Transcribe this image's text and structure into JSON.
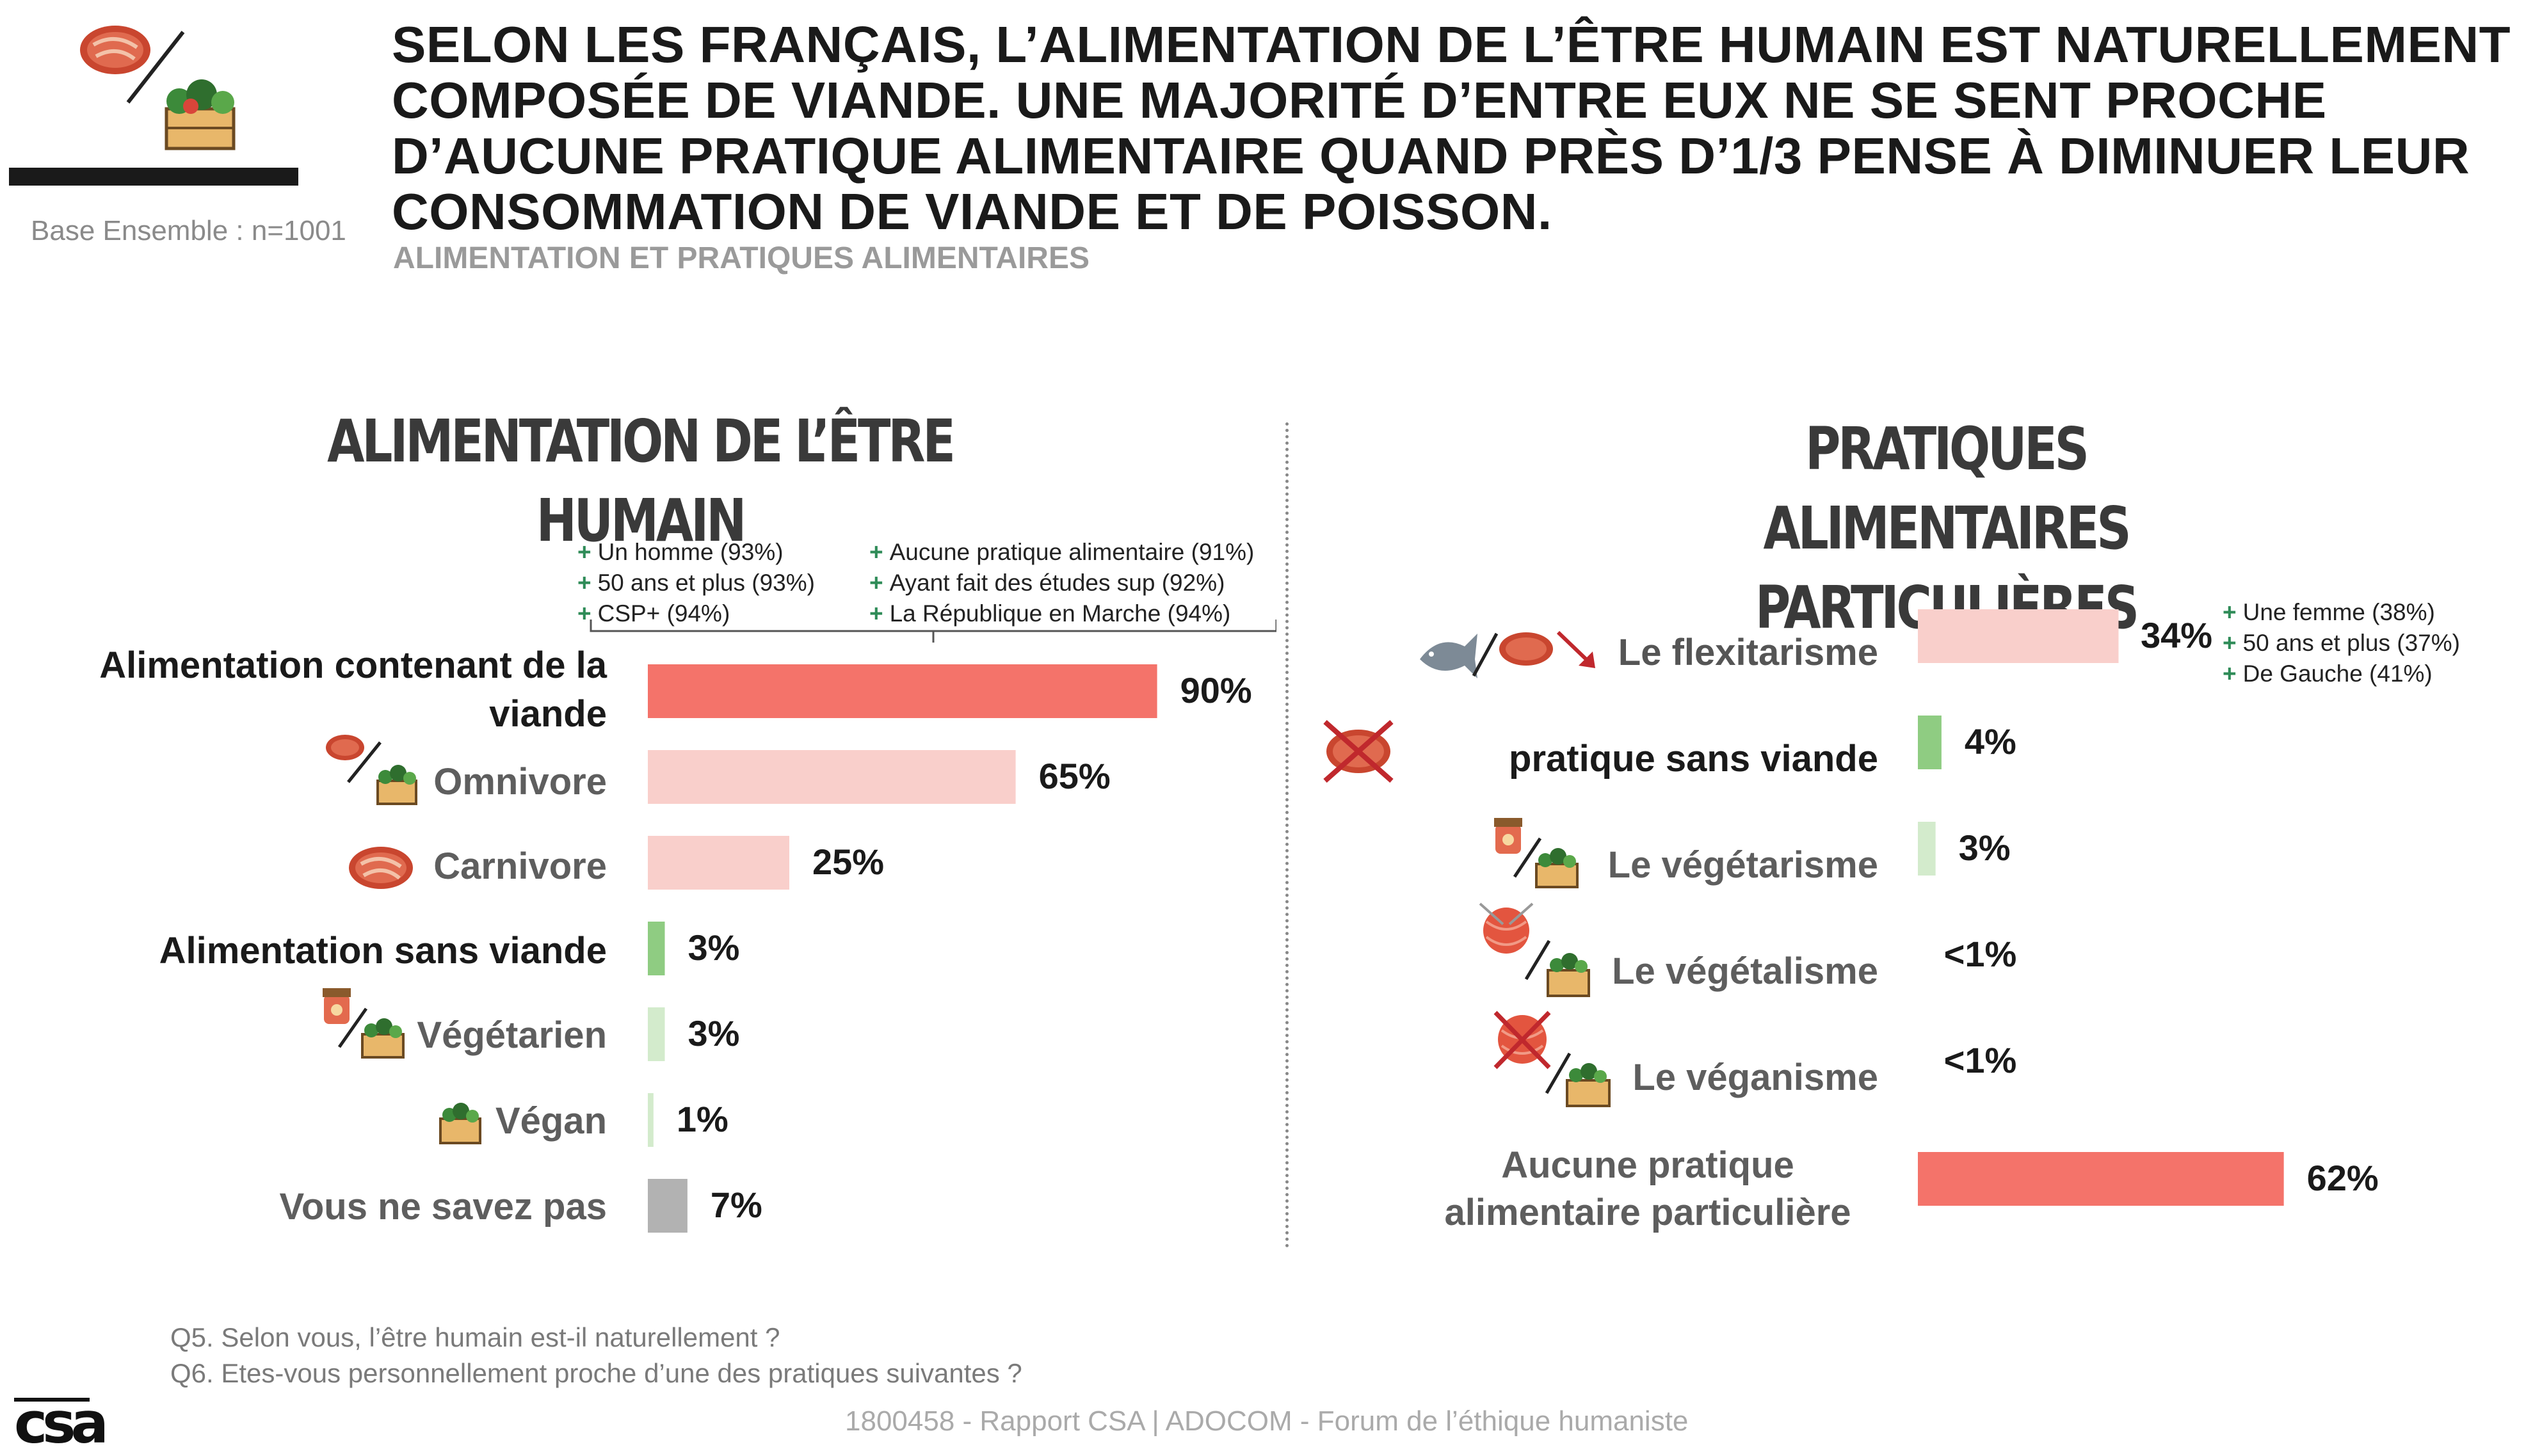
{
  "header": {
    "base": "Base Ensemble : n=1001",
    "title": "SELON LES FRANÇAIS, L’ALIMENTATION DE L’ÊTRE HUMAIN EST NATURELLEMENT COMPOSÉE DE VIANDE. UNE MAJORITÉ D’ENTRE EUX NE SE SENT PROCHE D’AUCUNE PRATIQUE ALIMENTAIRE QUAND PRÈS D’1/3 PENSE À DIMINUER LEUR CONSOMMATION DE VIANDE ET DE POISSON.",
    "subtitle": "ALIMENTATION ET PRATIQUES ALIMENTAIRES"
  },
  "left_notes": [
    [
      "Un homme (93%)",
      "50 ans et plus (93%)",
      "CSP+ (94%)"
    ],
    [
      "Aucune pratique alimentaire (91%)",
      "Ayant fait des études sup (92%)",
      "La République en Marche (94%)"
    ]
  ],
  "right_notes": [
    "Une femme (38%)",
    "50 ans et plus (37%)",
    "De Gauche (41%)"
  ],
  "colors": {
    "main": "#f4736a",
    "light": "#f9cfcb",
    "green": "#8fcc82",
    "light_green": "#d3ebcc",
    "grey": "#b2b2b2",
    "note_plus": "#2e8b57"
  },
  "icons": [
    "steak-icon",
    "vegetable-crate-icon",
    "fish-icon",
    "jam-jar-icon",
    "yarn-ball-icon",
    "crossed-out-steak-icon",
    "red-arrow-icon"
  ],
  "chart_data": [
    {
      "type": "bar",
      "orientation": "horizontal",
      "title": "ALIMENTATION DE L’ÊTRE HUMAIN",
      "categories": [
        "Alimentation contenant de la viande",
        "Omnivore",
        "Carnivore",
        "Alimentation sans viande",
        "Végétarien",
        "Végan",
        "Vous ne savez pas"
      ],
      "values": [
        90,
        65,
        25,
        3,
        3,
        1,
        7
      ],
      "value_labels": [
        "90%",
        "65%",
        "25%",
        "3%",
        "3%",
        "1%",
        "7%"
      ],
      "xlim": [
        0,
        100
      ],
      "grid": false
    },
    {
      "type": "bar",
      "orientation": "horizontal",
      "title": "PRATIQUES ALIMENTAIRES PARTICULIÈRES",
      "categories": [
        "Le flexitarisme",
        "pratique sans viande",
        "Le végétarisme",
        "Le végétalisme",
        "Le véganisme",
        "Aucune pratique alimentaire particulière"
      ],
      "values": [
        34,
        4,
        3,
        0.5,
        0.5,
        62
      ],
      "value_labels": [
        "34%",
        "4%",
        "3%",
        "<1%",
        "<1%",
        "62%"
      ],
      "xlim": [
        0,
        100
      ],
      "grid": false
    }
  ],
  "footer": {
    "q5": "Q5. Selon vous, l’être humain est-il naturellement ?",
    "q6": "Q6. Etes-vous personnellement proche d’une des pratiques suivantes ?",
    "source": "1800458 - Rapport CSA | ADOCOM - Forum de l’éthique humaniste",
    "logo": "csa"
  }
}
